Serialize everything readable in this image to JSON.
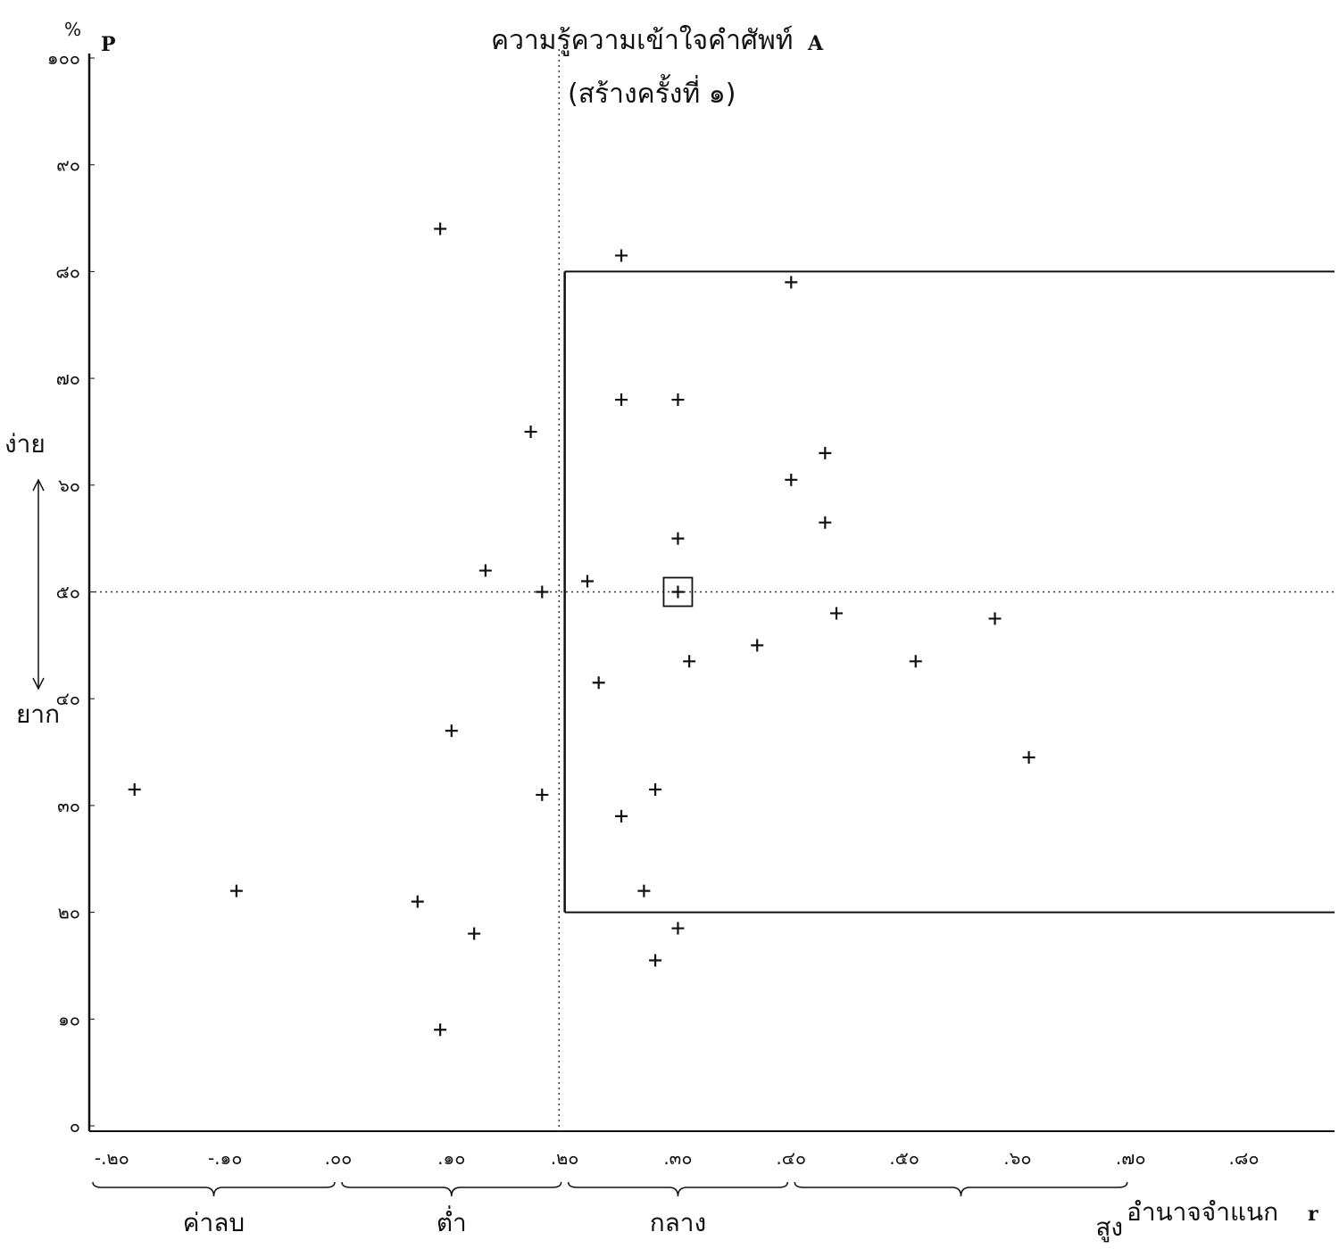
{
  "chart_data": {
    "type": "scatter",
    "title": "ความรู้ความเข้าใจคำศัพท์",
    "title_suffix": "A",
    "subtitle": "(สร้างครั้งที่ ๑)",
    "y_axis": {
      "symbol": "P",
      "unit": "%",
      "range": [
        0,
        100
      ],
      "ticks": [
        {
          "value": 0,
          "label": "๐"
        },
        {
          "value": 10,
          "label": "๑๐"
        },
        {
          "value": 20,
          "label": "๒๐"
        },
        {
          "value": 30,
          "label": "๓๐"
        },
        {
          "value": 40,
          "label": "๔๐"
        },
        {
          "value": 50,
          "label": "๕๐"
        },
        {
          "value": 60,
          "label": "๖๐"
        },
        {
          "value": 70,
          "label": "๗๐"
        },
        {
          "value": 80,
          "label": "๘๐"
        },
        {
          "value": 90,
          "label": "๙๐"
        },
        {
          "value": 100,
          "label": "๑๐๐"
        }
      ],
      "easy_label": "ง่าย",
      "hard_label": "ยาก"
    },
    "x_axis": {
      "symbol": "r",
      "label": "อำนาจจำแนก",
      "range": [
        -0.22,
        0.88
      ],
      "ticks": [
        {
          "value": -0.2,
          "label": "-.๒๐"
        },
        {
          "value": -0.1,
          "label": "-.๑๐"
        },
        {
          "value": 0.0,
          "label": ".๐๐"
        },
        {
          "value": 0.1,
          "label": ".๑๐"
        },
        {
          "value": 0.2,
          "label": ".๒๐"
        },
        {
          "value": 0.3,
          "label": ".๓๐"
        },
        {
          "value": 0.4,
          "label": ".๔๐"
        },
        {
          "value": 0.5,
          "label": ".๕๐"
        },
        {
          "value": 0.6,
          "label": ".๖๐"
        },
        {
          "value": 0.7,
          "label": ".๗๐"
        },
        {
          "value": 0.8,
          "label": ".๘๐"
        }
      ],
      "groups": [
        {
          "label": "ค่าลบ",
          "from": -0.22,
          "to": 0.0
        },
        {
          "label": "ต่ำ",
          "from": 0.0,
          "to": 0.2
        },
        {
          "label": "กลาง",
          "from": 0.2,
          "to": 0.4
        },
        {
          "label": "สูง",
          "from": 0.4,
          "to": 0.7
        }
      ]
    },
    "reference_lines": {
      "x_dotted": 0.195,
      "y_dotted": 50,
      "accept_region": {
        "x_min": 0.2,
        "y_min": 20,
        "y_max": 80
      }
    },
    "points": [
      {
        "x": 0.09,
        "y": 84
      },
      {
        "x": 0.25,
        "y": 81.5
      },
      {
        "x": 0.4,
        "y": 79
      },
      {
        "x": 0.25,
        "y": 68
      },
      {
        "x": 0.3,
        "y": 68
      },
      {
        "x": 0.17,
        "y": 65
      },
      {
        "x": 0.43,
        "y": 63
      },
      {
        "x": 0.4,
        "y": 60.5
      },
      {
        "x": 0.43,
        "y": 56.5
      },
      {
        "x": 0.3,
        "y": 55
      },
      {
        "x": 0.13,
        "y": 52
      },
      {
        "x": 0.22,
        "y": 51
      },
      {
        "x": 0.18,
        "y": 50
      },
      {
        "x": 0.3,
        "y": 50,
        "highlighted": true
      },
      {
        "x": 0.44,
        "y": 48
      },
      {
        "x": 0.58,
        "y": 47.5
      },
      {
        "x": 0.37,
        "y": 45
      },
      {
        "x": 0.31,
        "y": 43.5
      },
      {
        "x": 0.51,
        "y": 43.5
      },
      {
        "x": 0.23,
        "y": 41.5
      },
      {
        "x": 0.1,
        "y": 37
      },
      {
        "x": 0.61,
        "y": 34.5
      },
      {
        "x": -0.18,
        "y": 31.5
      },
      {
        "x": 0.28,
        "y": 31.5
      },
      {
        "x": 0.18,
        "y": 31
      },
      {
        "x": 0.25,
        "y": 29
      },
      {
        "x": -0.09,
        "y": 22
      },
      {
        "x": 0.27,
        "y": 22
      },
      {
        "x": 0.07,
        "y": 21
      },
      {
        "x": 0.12,
        "y": 18
      },
      {
        "x": 0.3,
        "y": 18.5
      },
      {
        "x": 0.28,
        "y": 15.5
      },
      {
        "x": 0.09,
        "y": 9
      }
    ]
  }
}
